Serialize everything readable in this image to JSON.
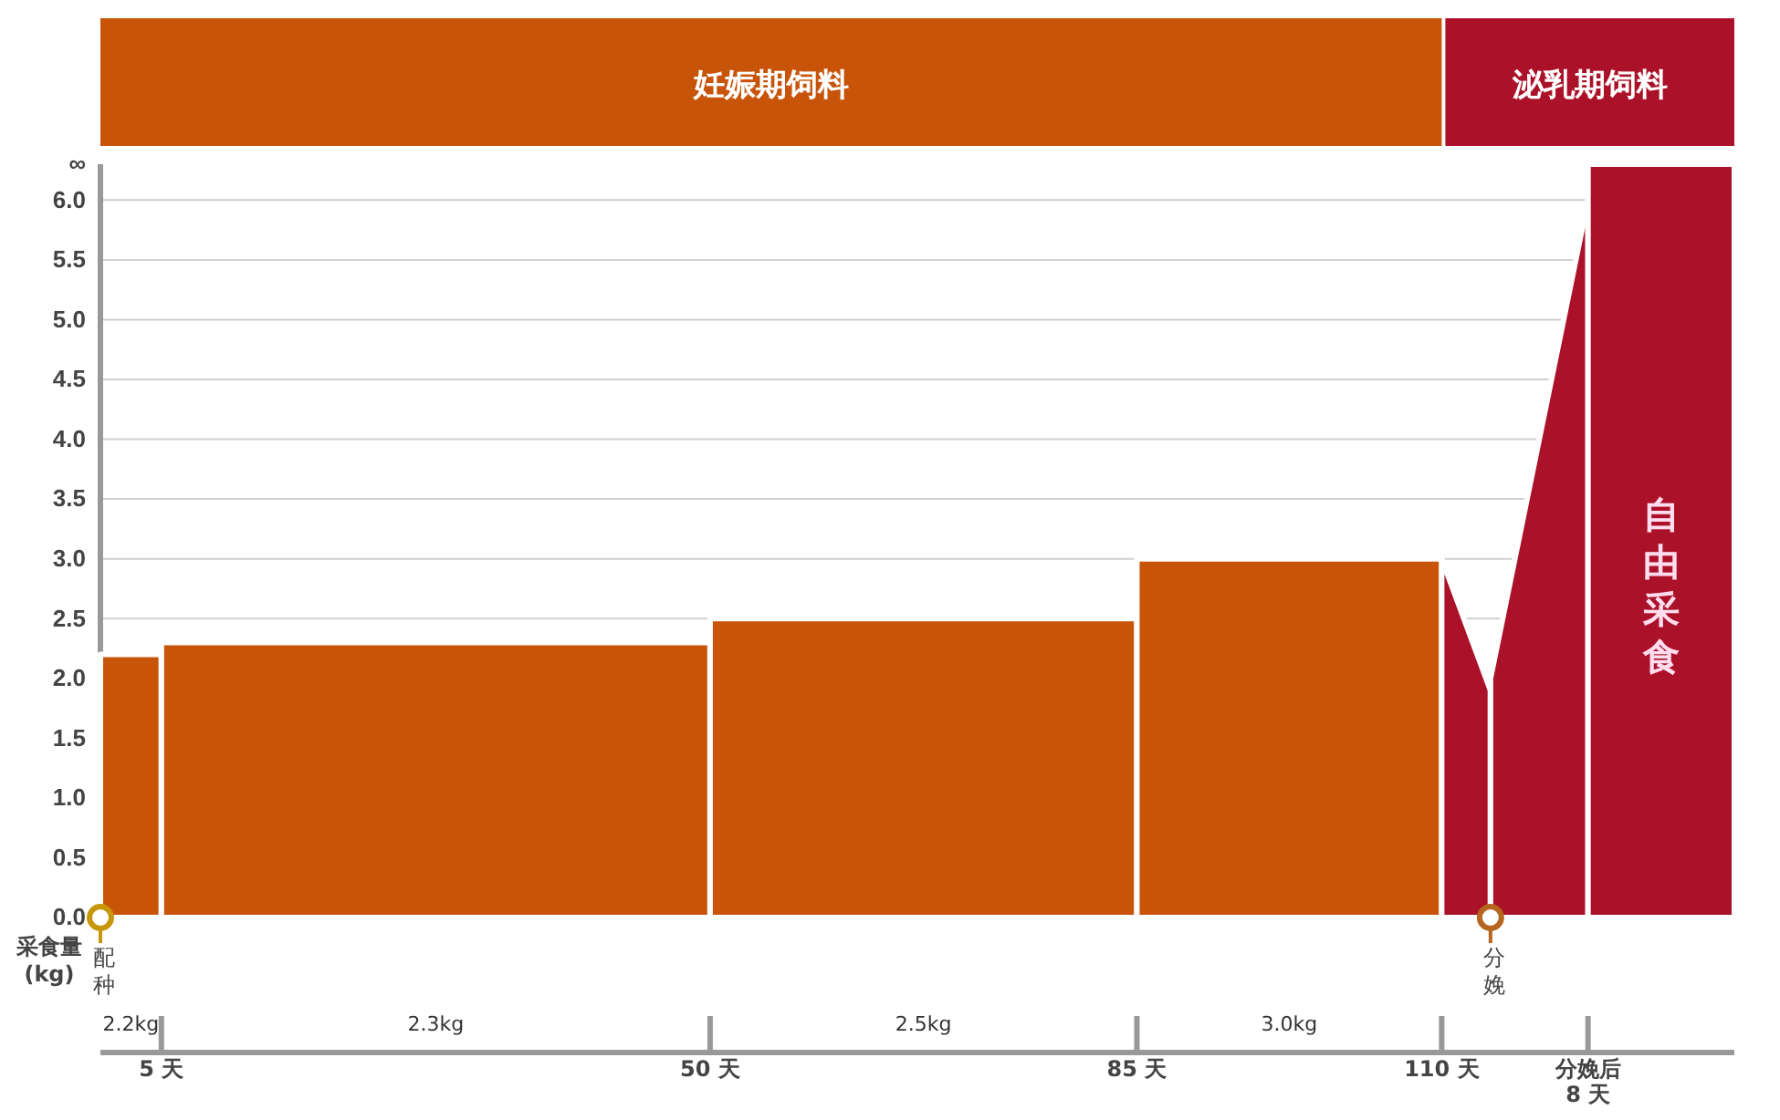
{
  "chart_data": {
    "type": "area",
    "ylabel": "采食量 (kg)",
    "xlim": [
      0,
      134
    ],
    "ylim": [
      0,
      6.3
    ],
    "xticks": [
      {
        "value": 5,
        "label": "5 天"
      },
      {
        "value": 50,
        "label": "50 天"
      },
      {
        "value": 85,
        "label": "85 天"
      },
      {
        "value": 110,
        "label": "110 天"
      },
      {
        "value": 122,
        "label": "分娩后 8 天"
      }
    ],
    "yticks": [
      {
        "value": 0,
        "label": "0.0"
      },
      {
        "value": 0.5,
        "label": "0.5"
      },
      {
        "value": 1,
        "label": "1.0"
      },
      {
        "value": 1.5,
        "label": "1.5"
      },
      {
        "value": 2,
        "label": "2.0"
      },
      {
        "value": 2.5,
        "label": "2.5"
      },
      {
        "value": 3,
        "label": "3.0"
      },
      {
        "value": 3.5,
        "label": "3.5"
      },
      {
        "value": 4,
        "label": "4.0"
      },
      {
        "value": 4.5,
        "label": "4.5"
      },
      {
        "value": 5,
        "label": "5.0"
      },
      {
        "value": 5.5,
        "label": "5.5"
      },
      {
        "value": 6,
        "label": "6.0"
      },
      {
        "value": 6.3,
        "label": "∞"
      }
    ],
    "grid": "y",
    "series": [
      {
        "color": "#c8540a",
        "x": [
          0,
          5
        ],
        "values": [
          2.2,
          2.2
        ]
      },
      {
        "color": "#c8540a",
        "x": [
          5,
          50
        ],
        "values": [
          2.3,
          2.3
        ]
      },
      {
        "color": "#c8540a",
        "x": [
          50,
          85
        ],
        "values": [
          2.5,
          2.5
        ]
      },
      {
        "color": "#c8540a",
        "x": [
          85,
          110
        ],
        "values": [
          3.0,
          3.0
        ]
      },
      {
        "color": "#ab1128",
        "x": [
          110,
          114
        ],
        "values": [
          3.0,
          1.9
        ]
      },
      {
        "color": "#ab1128",
        "x": [
          114,
          122
        ],
        "values": [
          2.0,
          6.0
        ]
      },
      {
        "color": "#ab1128",
        "x": [
          122,
          134
        ],
        "values": [
          6.3,
          6.3
        ]
      }
    ],
    "ref_lines": [
      {
        "axis": "x",
        "value": 0,
        "label": "配种",
        "color": "#c8960a"
      },
      {
        "axis": "x",
        "value": 114,
        "label": "分娩",
        "color": "#b5651d"
      }
    ],
    "annotations": [
      "妊娠期饲料",
      "泌乳期饲料",
      "2.2kg",
      "2.3kg",
      "2.5kg",
      "3.0kg",
      "自由采食"
    ]
  }
}
